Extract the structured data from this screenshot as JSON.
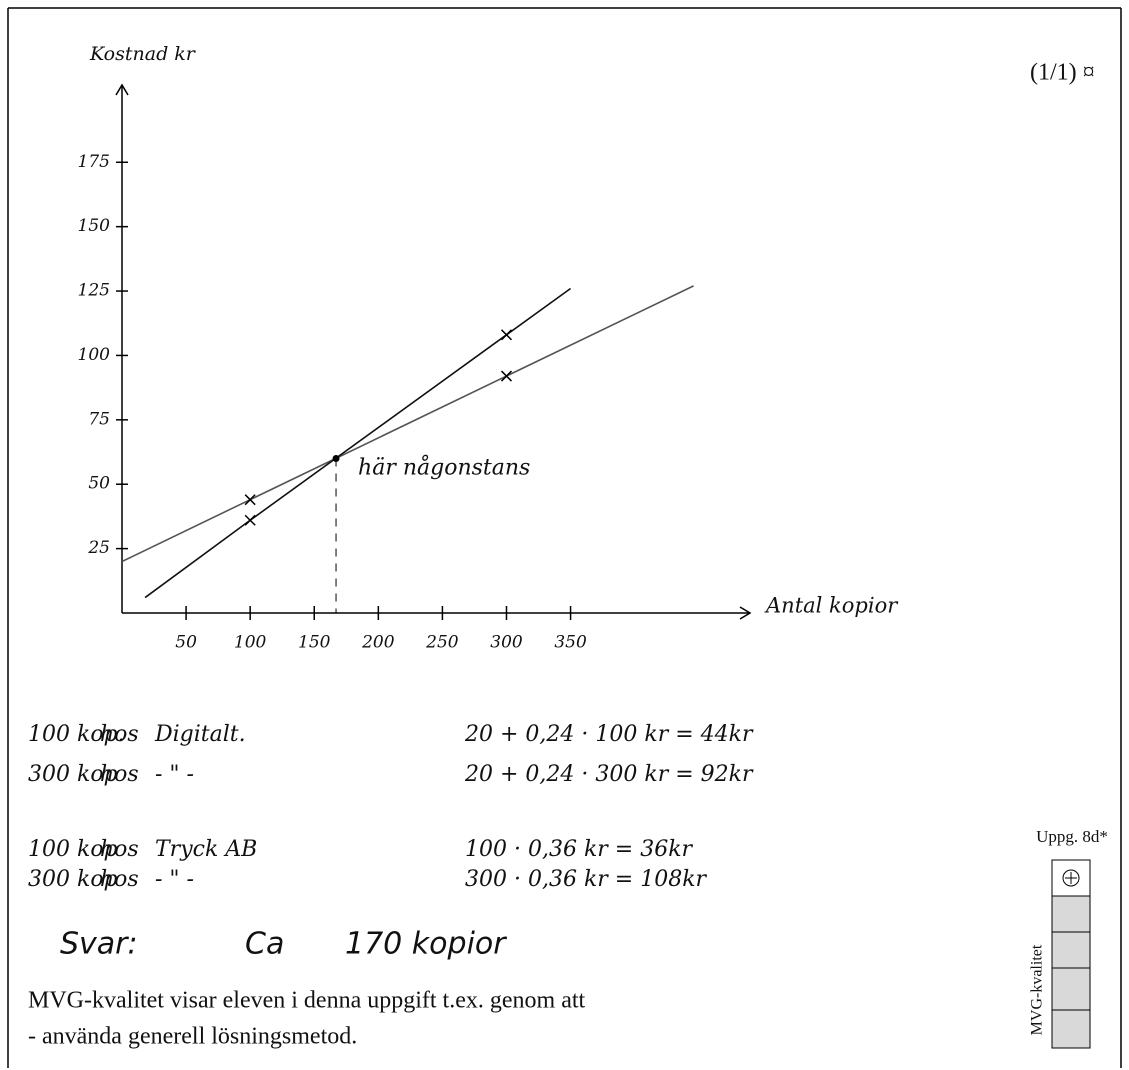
{
  "header": {
    "page": "(1/1) ¤"
  },
  "chart_data": {
    "type": "line",
    "y_label": "Kostnad kr",
    "x_label": "Antal kopior",
    "xlim": [
      0,
      490
    ],
    "ylim": [
      0,
      205
    ],
    "xticks": [
      50,
      100,
      150,
      200,
      250,
      300,
      350
    ],
    "yticks": [
      25,
      50,
      75,
      100,
      125,
      150,
      175
    ],
    "series": [
      {
        "color": "#555555",
        "x": [
          0,
          100,
          300,
          446
        ],
        "values": [
          20,
          44,
          92,
          127
        ]
      },
      {
        "color": "#111111",
        "x": [
          18,
          100,
          300,
          350
        ],
        "values": [
          6,
          36,
          108,
          126
        ]
      }
    ],
    "annotation": {
      "text": "här någonstans",
      "x": 167,
      "y": 60
    }
  },
  "calculations": [
    [
      "100 kop.",
      "hos",
      "Digitalt.",
      "20 + 0,24 · 100 kr = 44kr"
    ],
    [
      "300 kop",
      "hos",
      "- \" -",
      "20 + 0,24 · 300 kr = 92kr"
    ],
    [
      "100 kop",
      "hos",
      "Tryck AB",
      "100 · 0,36 kr = 36kr"
    ],
    [
      "300 kop",
      "hos",
      "- \" -",
      "300 · 0,36 kr = 108kr"
    ]
  ],
  "answer": [
    "Svar:",
    "Ca",
    "170 kopior"
  ],
  "comment": [
    "MVG-kvalitet visar eleven i denna uppgift t.ex. genom att",
    "- använda generell lösningsmetod."
  ],
  "sidebar": {
    "task": "Uppg. 8d*",
    "label": "MVG-kvalitet"
  }
}
